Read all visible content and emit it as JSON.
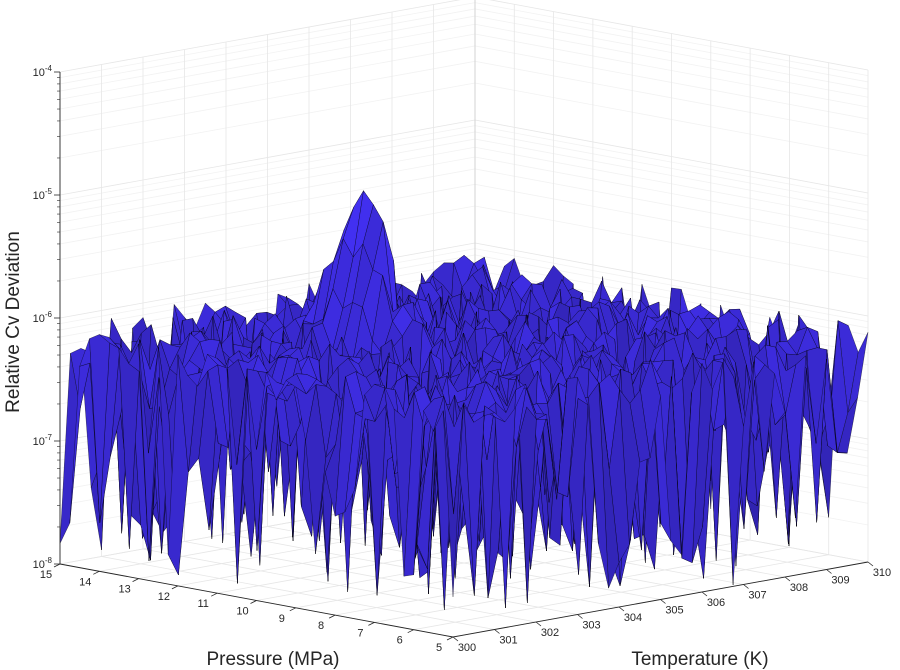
{
  "chart_data": {
    "type": "surface",
    "title": "",
    "zlabel": "Relative Cv Deviation",
    "xlabel": "Temperature (K)",
    "ylabel": "Pressure (MPa)",
    "z_scale": "log",
    "xlim": [
      300,
      310
    ],
    "ylim": [
      5,
      15
    ],
    "zlim": [
      1e-08,
      0.0001
    ],
    "x_ticks": [
      "300",
      "301",
      "302",
      "303",
      "304",
      "305",
      "306",
      "307",
      "308",
      "309",
      "310"
    ],
    "y_ticks": [
      "5",
      "6",
      "7",
      "8",
      "9",
      "10",
      "11",
      "12",
      "13",
      "14",
      "15"
    ],
    "z_ticks": [
      {
        "base": "10",
        "exp": "-8"
      },
      {
        "base": "10",
        "exp": "-7"
      },
      {
        "base": "10",
        "exp": "-6"
      },
      {
        "base": "10",
        "exp": "-5"
      },
      {
        "base": "10",
        "exp": "-4"
      }
    ],
    "grid": true,
    "surface_color": "#3a2ad4",
    "edge_color": "#000000",
    "typical_value": 6e-07,
    "min_value": 1e-08,
    "peak": {
      "temperature": 304,
      "pressure": 11.5,
      "value": 1e-05
    }
  }
}
